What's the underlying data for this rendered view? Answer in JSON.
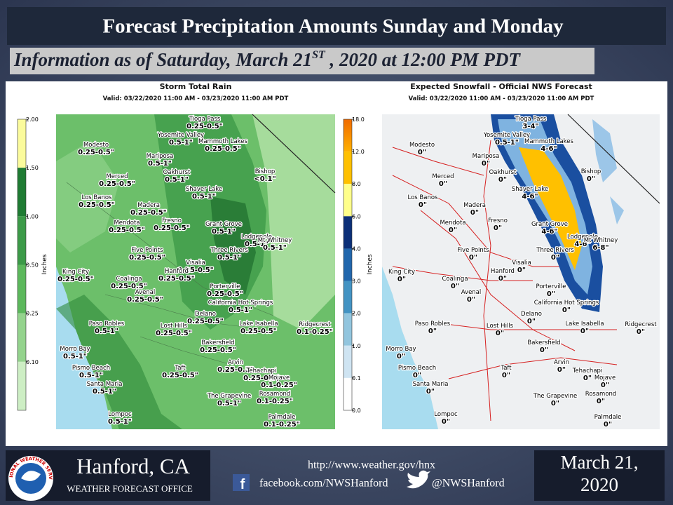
{
  "header": {
    "title": "Forecast Precipitation Amounts Sunday and Monday",
    "subtitle_parts": [
      "Information as of Saturday, March 21",
      "ST",
      " , 2020 at 12:00 PM PDT"
    ]
  },
  "places": [
    "Tioga Pass",
    "Yosemite Valley",
    "Mammoth Lakes",
    "Modesto",
    "Mariposa",
    "Bishop",
    "Merced",
    "Oakhurst",
    "Shaver Lake",
    "Los Banos",
    "Madera",
    "Mendota",
    "Fresno",
    "Grant Grove",
    "Lodgepole",
    "Mt Whitney",
    "Three Rivers",
    "Five Points",
    "Visalia",
    "Hanford",
    "King City",
    "Coalinga",
    "Porterville",
    "Avenal",
    "California Hot Springs",
    "Delano",
    "Paso Robles",
    "Lost Hills",
    "Lake Isabella",
    "Ridgecrest",
    "Bakersfield",
    "Morro Bay",
    "Pismo Beach",
    "Taft",
    "Arvin",
    "Tehachapi",
    "Mojave",
    "Santa Maria",
    "The Grapevine",
    "Rosamond",
    "Lompoc",
    "Palmdale"
  ],
  "maps": [
    {
      "title": "Storm Total Rain",
      "valid": "Valid: 03/22/2020 11:00 AM - 03/23/2020 11:00 AM PDT",
      "units": "Inches",
      "colorbar": [
        "2.00",
        "1.50",
        "1.00",
        "0.50",
        "0.25",
        "0.10"
      ],
      "values": [
        "0.25-0.5\"",
        "0.5-1\"",
        "0.25-0.5\"",
        "0.25-0.5\"",
        "0.5-1\"",
        "<0.1\"",
        "0.25-0.5\"",
        "0.5-1\"",
        "0.5-1\"",
        "0.25-0.5\"",
        "0.25-0.5\"",
        "0.25-0.5\"",
        "0.25-0.5\"",
        "0.5-1\"",
        "0.5-1\"",
        "0.5-1\"",
        "0.5-1\"",
        "0.25-0.5\"",
        "0.25-0.5\"",
        "0.25-0.5\"",
        "0.25-0.5\"",
        "0.25-0.5\"",
        "0.25-0.5\"",
        "0.25-0.5\"",
        "0.5-1\"",
        "0.25-0.5\"",
        "0.5-1\"",
        "0.25-0.5\"",
        "0.25-0.5\"",
        "0.1-0.25\"",
        "0.25-0.5\"",
        "0.5-1\"",
        "0.5-1\"",
        "0.25-0.5\"",
        "0.25-0.5\"",
        "0.25-0.5\"",
        "0.1-0.25\"",
        "0.5-1\"",
        "0.5-1\"",
        "0.1-0.25\"",
        "0.5-1\"",
        "0.1-0.25\""
      ]
    },
    {
      "title": "Expected Snowfall - Official NWS Forecast",
      "valid": "Valid: 03/22/2020 11:00 AM - 03/23/2020 11:00 AM PDT",
      "units": "Inches",
      "colorbar": [
        "18.0",
        "12.0",
        "8.0",
        "6.0",
        "4.0",
        "3.0",
        "2.0",
        "1.0",
        "0.1",
        "0.0"
      ],
      "values": [
        "3-4\"",
        "0.5-1\"",
        "4-6\"",
        "0\"",
        "0\"",
        "0\"",
        "0\"",
        "0\"",
        "4-6\"",
        "0\"",
        "0\"",
        "0\"",
        "0\"",
        "4-6\"",
        "4-6\"",
        "6-8\"",
        "0\"",
        "0\"",
        "0\"",
        "0\"",
        "0\"",
        "0\"",
        "0\"",
        "0\"",
        "0\"",
        "0\"",
        "0\"",
        "0\"",
        "0\"",
        "0\"",
        "0\"",
        "0\"",
        "0\"",
        "0\"",
        "0\"",
        "0\"",
        "0\"",
        "0\"",
        "0\"",
        "0\"",
        "0\"",
        "0\""
      ]
    }
  ],
  "footer": {
    "office": "Hanford, CA",
    "office_sub": "WEATHER FORECAST OFFICE",
    "logo_text": "NATIONAL WEATHER SERVICE",
    "url": "http://www.weather.gov/hnx",
    "facebook": "facebook.com/NWSHanford",
    "twitter": "@NWSHanford",
    "date_line1": "March 21,",
    "date_line2": "2020"
  }
}
